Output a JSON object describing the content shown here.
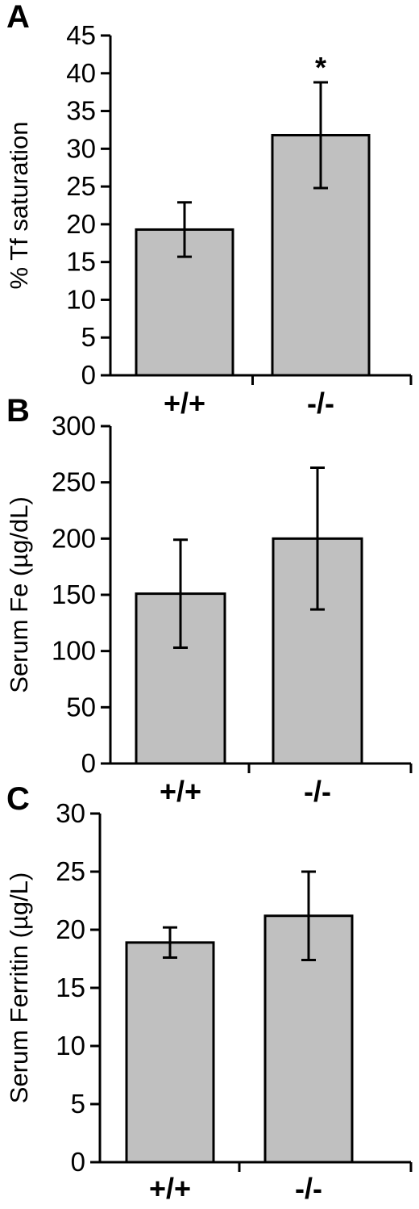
{
  "chart_data": [
    {
      "type": "bar",
      "panel": "A",
      "ylabel": "% Tf saturation",
      "categories": [
        "+/+",
        "-/-"
      ],
      "values": [
        19.3,
        31.8
      ],
      "errors": [
        3.6,
        7.0
      ],
      "ylim": [
        0,
        45
      ],
      "yticks": [
        0,
        5,
        10,
        15,
        20,
        25,
        30,
        35,
        40,
        45
      ],
      "annotations": [
        {
          "category": "-/-",
          "text": "*"
        }
      ],
      "bar_color": "#c0c0c0",
      "grid": false
    },
    {
      "type": "bar",
      "panel": "B",
      "ylabel": "Serum Fe (µg/dL)",
      "categories": [
        "+/+",
        "-/-"
      ],
      "values": [
        151,
        200
      ],
      "errors": [
        48,
        63
      ],
      "ylim": [
        0,
        300
      ],
      "yticks": [
        0,
        50,
        100,
        150,
        200,
        250,
        300
      ],
      "annotations": [],
      "bar_color": "#c0c0c0",
      "grid": false
    },
    {
      "type": "bar",
      "panel": "C",
      "ylabel": "Serum Ferritin (µg/L)",
      "categories": [
        "+/+",
        "-/-"
      ],
      "values": [
        18.9,
        21.2
      ],
      "errors": [
        1.3,
        3.8
      ],
      "ylim": [
        0,
        30
      ],
      "yticks": [
        0,
        5,
        10,
        15,
        20,
        25,
        30
      ],
      "annotations": [],
      "bar_color": "#c0c0c0",
      "grid": false
    }
  ]
}
